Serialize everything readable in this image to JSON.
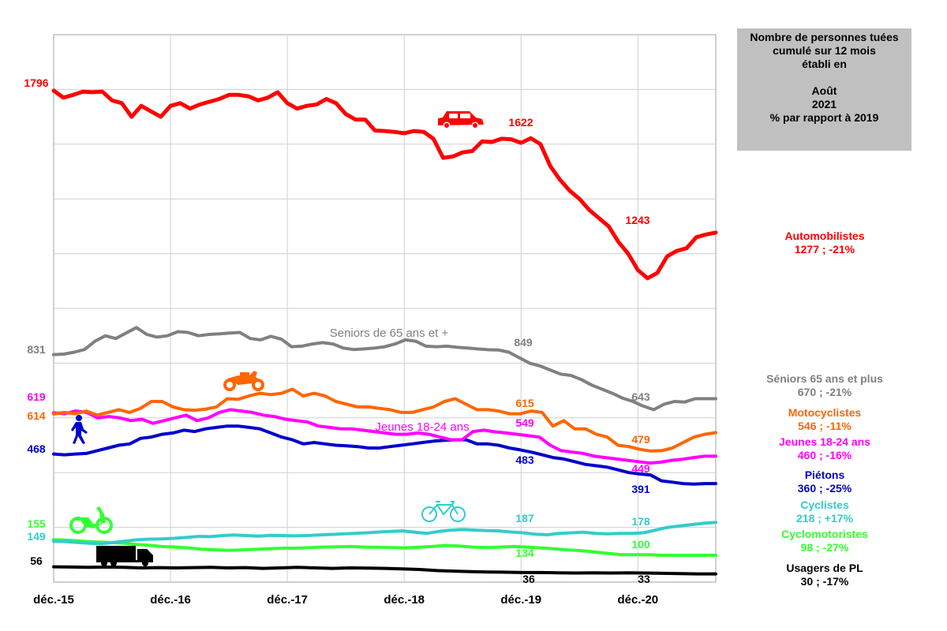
{
  "info_box": {
    "line1": "Nombre de personnes tuées",
    "line2": "cumulé sur 12 mois",
    "line3": "établi en",
    "line4": "Août",
    "line5": "2021",
    "line6": "% par rapport à 2019"
  },
  "chart_data": {
    "type": "line",
    "x_tick_labels": [
      "déc.-15",
      "déc.-16",
      "déc.-17",
      "déc.-18",
      "déc.-19",
      "déc.-20"
    ],
    "x_start": "2015-12",
    "x_end": "2021-08",
    "ylim": [
      0,
      2000
    ],
    "grid": true,
    "series": [
      {
        "name": "Automobilistes",
        "color": "#ff0000",
        "width": 5,
        "values": [
          1796,
          1770,
          1780,
          1792,
          1790,
          1792,
          1760,
          1750,
          1700,
          1740,
          1720,
          1700,
          1740,
          1750,
          1730,
          1745,
          1755,
          1765,
          1780,
          1780,
          1775,
          1760,
          1770,
          1790,
          1750,
          1730,
          1740,
          1745,
          1765,
          1750,
          1710,
          1690,
          1690,
          1650,
          1648,
          1645,
          1640,
          1648,
          1645,
          1620,
          1550,
          1555,
          1570,
          1575,
          1610,
          1608,
          1620,
          1618,
          1605,
          1622,
          1600,
          1520,
          1470,
          1430,
          1400,
          1360,
          1330,
          1300,
          1243,
          1200,
          1140,
          1110,
          1130,
          1190,
          1210,
          1220,
          1260,
          1270,
          1277
        ]
      },
      {
        "name": "Séniors 65 ans et plus",
        "color": "#808080",
        "width": 4,
        "values": [
          831,
          833,
          840,
          850,
          880,
          900,
          890,
          910,
          930,
          905,
          895,
          900,
          915,
          912,
          900,
          905,
          907,
          910,
          912,
          890,
          885,
          898,
          888,
          860,
          862,
          870,
          875,
          870,
          855,
          850,
          852,
          855,
          860,
          870,
          885,
          880,
          862,
          860,
          862,
          858,
          855,
          852,
          849,
          848,
          840,
          820,
          800,
          790,
          775,
          760,
          755,
          740,
          720,
          705,
          690,
          672,
          660,
          643,
          630,
          650,
          660,
          658,
          670,
          670,
          670
        ]
      },
      {
        "name": "Motocyclistes",
        "color": "#ff6600",
        "width": 4,
        "values": [
          614,
          620,
          615,
          625,
          610,
          620,
          630,
          620,
          635,
          660,
          660,
          640,
          630,
          628,
          632,
          640,
          670,
          668,
          680,
          690,
          685,
          690,
          705,
          680,
          690,
          680,
          660,
          650,
          640,
          640,
          635,
          630,
          620,
          620,
          630,
          640,
          660,
          670,
          650,
          630,
          630,
          625,
          615,
          615,
          625,
          620,
          570,
          590,
          560,
          560,
          540,
          530,
          500,
          495,
          485,
          479,
          480,
          490,
          510,
          530,
          540,
          546
        ]
      },
      {
        "name": "Jeunes 18-24 ans",
        "color": "#ff00ff",
        "width": 4,
        "values": [
          619,
          615,
          625,
          620,
          600,
          605,
          600,
          590,
          595,
          580,
          590,
          600,
          610,
          590,
          600,
          620,
          630,
          625,
          620,
          610,
          605,
          595,
          590,
          585,
          570,
          565,
          560,
          560,
          555,
          550,
          545,
          540,
          540,
          545,
          540,
          530,
          520,
          520,
          550,
          555,
          549,
          545,
          540,
          535,
          530,
          500,
          480,
          475,
          470,
          460,
          455,
          450,
          445,
          440,
          435,
          438,
          445,
          449,
          455,
          460,
          460
        ]
      },
      {
        "name": "Piétons",
        "color": "#0000cc",
        "width": 4,
        "values": [
          468,
          465,
          468,
          470,
          480,
          490,
          500,
          505,
          525,
          530,
          540,
          545,
          555,
          550,
          560,
          565,
          570,
          570,
          565,
          560,
          545,
          530,
          520,
          505,
          510,
          505,
          500,
          498,
          495,
          490,
          490,
          495,
          500,
          505,
          510,
          515,
          518,
          520,
          520,
          505,
          505,
          500,
          490,
          483,
          475,
          465,
          455,
          450,
          440,
          430,
          425,
          420,
          410,
          400,
          395,
          391,
          370,
          365,
          360,
          358,
          360,
          360
        ]
      },
      {
        "name": "Cyclistes",
        "color": "#33cccc",
        "width": 4,
        "values": [
          149,
          148,
          145,
          142,
          140,
          145,
          150,
          155,
          157,
          158,
          160,
          163,
          167,
          166,
          170,
          172,
          170,
          168,
          171,
          170,
          169,
          170,
          172,
          174,
          176,
          178,
          180,
          183,
          185,
          187,
          182,
          178,
          185,
          190,
          192,
          190,
          188,
          187,
          183,
          180,
          175,
          173,
          178,
          180,
          182,
          178,
          176,
          178,
          178,
          180,
          190,
          200,
          205,
          210,
          215,
          218
        ]
      },
      {
        "name": "Cyclomotoristes",
        "color": "#33ff33",
        "width": 4,
        "values": [
          155,
          153,
          150,
          147,
          145,
          143,
          138,
          135,
          130,
          128,
          125,
          120,
          118,
          116,
          118,
          120,
          122,
          124,
          124,
          126,
          128,
          129,
          130,
          128,
          127,
          126,
          125,
          127,
          130,
          134,
          132,
          128,
          126,
          128,
          130,
          128,
          125,
          122,
          118,
          115,
          110,
          105,
          100,
          100,
          100,
          98,
          98,
          98,
          98,
          98
        ]
      },
      {
        "name": "Usagers de PL",
        "color": "#000000",
        "width": 4,
        "values": [
          56,
          55,
          54,
          55,
          54,
          52,
          53,
          52,
          53,
          54,
          52,
          53,
          50,
          52,
          54,
          52,
          50,
          52,
          51,
          50,
          48,
          46,
          42,
          40,
          38,
          37,
          36,
          35,
          35,
          34,
          33,
          34,
          33,
          34,
          33,
          32,
          31,
          30,
          30
        ]
      }
    ],
    "point_labels": [
      {
        "text": "1796",
        "color": "#ff0000"
      },
      {
        "text": "1622",
        "color": "#ff0000"
      },
      {
        "text": "1243",
        "color": "#ff0000"
      },
      {
        "text": "831",
        "color": "#808080"
      },
      {
        "text": "849",
        "color": "#808080"
      },
      {
        "text": "643",
        "color": "#808080"
      },
      {
        "text": "619",
        "color": "#ff00ff"
      },
      {
        "text": "614",
        "color": "#ff6600"
      },
      {
        "text": "615",
        "color": "#ff6600"
      },
      {
        "text": "549",
        "color": "#ff00ff"
      },
      {
        "text": "479",
        "color": "#ff6600"
      },
      {
        "text": "449",
        "color": "#ff00ff"
      },
      {
        "text": "468",
        "color": "#0000cc"
      },
      {
        "text": "483",
        "color": "#0000cc"
      },
      {
        "text": "391",
        "color": "#0000cc"
      },
      {
        "text": "155",
        "color": "#33ff33"
      },
      {
        "text": "149",
        "color": "#33cccc"
      },
      {
        "text": "187",
        "color": "#33cccc"
      },
      {
        "text": "178",
        "color": "#33cccc"
      },
      {
        "text": "134",
        "color": "#33ff33"
      },
      {
        "text": "100",
        "color": "#33ff33"
      },
      {
        "text": "56",
        "color": "#000000"
      },
      {
        "text": "36",
        "color": "#000000"
      },
      {
        "text": "33",
        "color": "#000000"
      }
    ],
    "annotations": [
      {
        "text": "Seniors de 65 ans et +",
        "color": "#808080"
      },
      {
        "text": "Jeunes 18-24 ans",
        "color": "#ff00ff"
      }
    ],
    "icons": [
      {
        "name": "car-icon",
        "color": "#ff0000"
      },
      {
        "name": "motorcycle-icon",
        "color": "#ff6600"
      },
      {
        "name": "pedestrian-icon",
        "color": "#0000cc"
      },
      {
        "name": "bicycle-icon",
        "color": "#33cccc"
      },
      {
        "name": "moped-icon",
        "color": "#33ff33"
      },
      {
        "name": "truck-icon",
        "color": "#000000"
      }
    ]
  },
  "legend": [
    {
      "name": "Automobilistes",
      "value": "1277 ; -21%",
      "color": "#ff0000"
    },
    {
      "name": "Séniors 65 ans et plus",
      "value": "670 ; -21%",
      "color": "#808080"
    },
    {
      "name": "Motocyclistes",
      "value": "546 ; -11%",
      "color": "#ff6600"
    },
    {
      "name": "Jeunes 18-24 ans",
      "value": "460 ; -16%",
      "color": "#ff00ff"
    },
    {
      "name": "Piétons",
      "value": "360 ; -25%",
      "color": "#0000cc"
    },
    {
      "name": "Cyclistes",
      "value": "218 ; +17%",
      "color": "#33cccc"
    },
    {
      "name": "Cyclomotoristes",
      "value": "98 ; -27%",
      "color": "#33ff33"
    },
    {
      "name": "Usagers de PL",
      "value": "30 ; -17%",
      "color": "#000000"
    }
  ]
}
